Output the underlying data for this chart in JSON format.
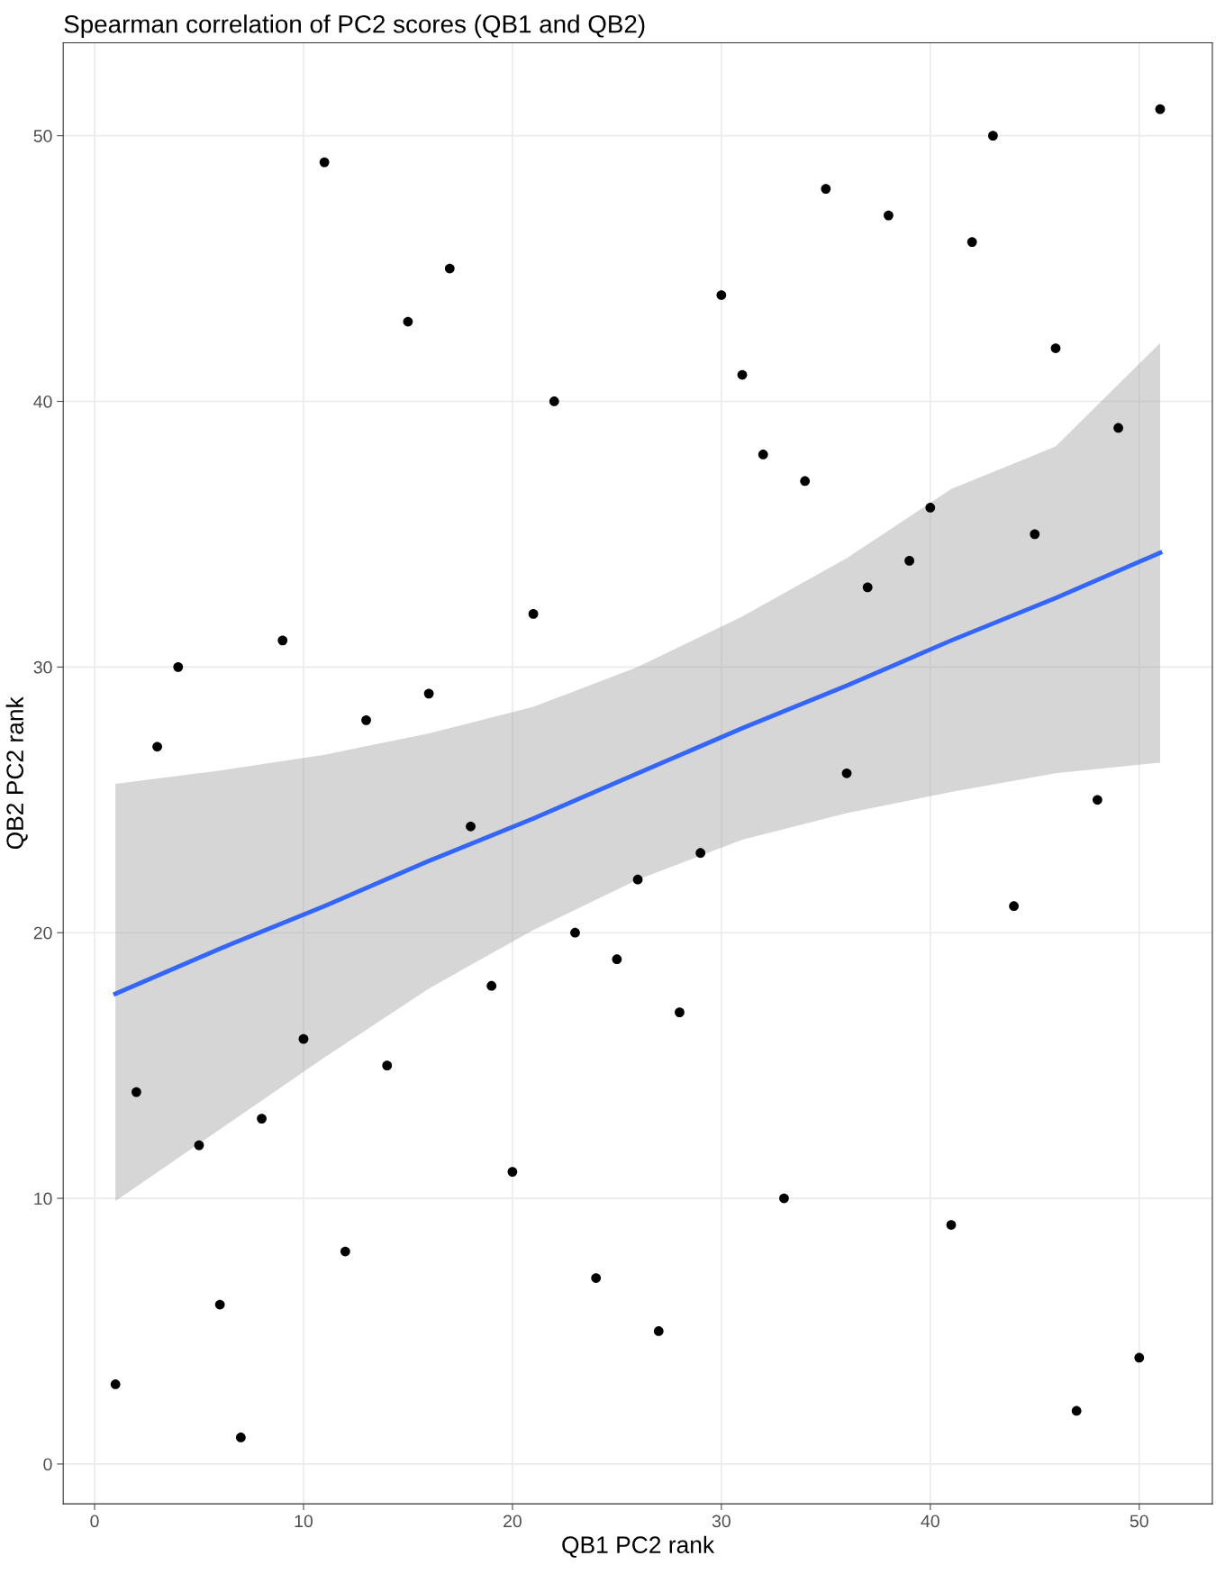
{
  "chart_data": {
    "type": "scatter",
    "title": "Spearman correlation of PC2 scores (QB1 and QB2)",
    "xlabel": "QB1 PC2 rank",
    "ylabel": "QB2 PC2 rank",
    "xlim": [
      -1.5,
      53.5
    ],
    "ylim": [
      -1.5,
      53.5
    ],
    "xticks": [
      0,
      10,
      20,
      30,
      40,
      50
    ],
    "yticks": [
      0,
      10,
      20,
      30,
      40,
      50
    ],
    "grid": true,
    "series": [
      {
        "marker": "circle",
        "color": "#000000",
        "x": [
          1,
          2,
          3,
          4,
          5,
          6,
          7,
          8,
          9,
          10,
          11,
          12,
          13,
          14,
          15,
          16,
          17,
          18,
          19,
          20,
          21,
          22,
          23,
          24,
          25,
          26,
          27,
          28,
          29,
          30,
          31,
          32,
          33,
          34,
          35,
          36,
          37,
          38,
          39,
          40,
          41,
          42,
          43,
          44,
          45,
          46,
          47,
          48,
          49,
          50,
          51
        ],
        "values": [
          3,
          14,
          27,
          30,
          12,
          6,
          1,
          13,
          31,
          16,
          49,
          8,
          28,
          15,
          43,
          29,
          45,
          24,
          18,
          11,
          32,
          40,
          20,
          7,
          19,
          22,
          5,
          17,
          23,
          44,
          41,
          38,
          10,
          37,
          48,
          26,
          33,
          47,
          34,
          36,
          9,
          46,
          50,
          21,
          35,
          42,
          2,
          25,
          39,
          4,
          51
        ]
      },
      {
        "type": "line",
        "color": "#3366ff",
        "x": [
          1,
          6,
          11,
          16,
          21,
          26,
          31,
          36,
          41,
          46,
          51
        ],
        "values": [
          17.7,
          19.4,
          21.0,
          22.7,
          24.3,
          26.0,
          27.7,
          29.3,
          31.0,
          32.6,
          34.3
        ],
        "lower": [
          9.9,
          12.6,
          15.3,
          17.9,
          20.1,
          22.0,
          23.5,
          24.5,
          25.3,
          26.0,
          26.4
        ],
        "upper": [
          25.6,
          26.1,
          26.7,
          27.5,
          28.5,
          30.0,
          31.9,
          34.1,
          36.7,
          38.3,
          42.2
        ]
      }
    ]
  }
}
